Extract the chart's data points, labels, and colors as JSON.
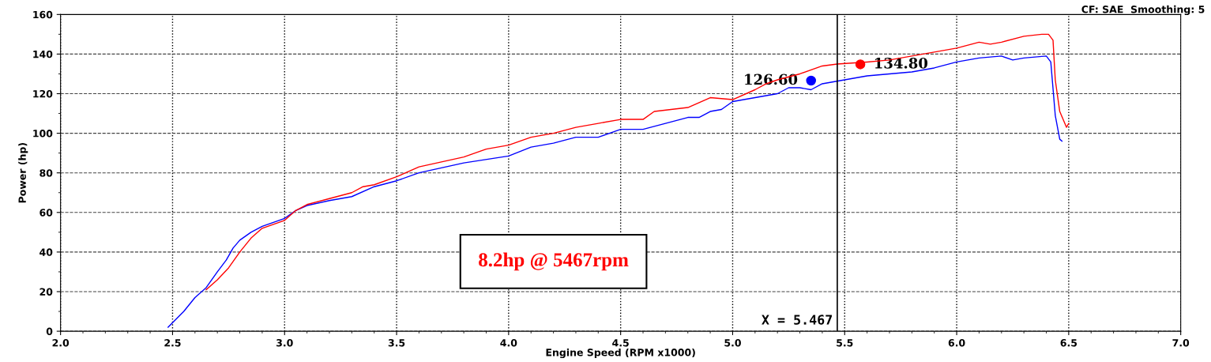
{
  "chart_data": {
    "type": "line",
    "xlabel": "Engine Speed (RPM x1000)",
    "ylabel": "Power (hp)",
    "xlim": [
      2.0,
      7.0
    ],
    "ylim": [
      0,
      160
    ],
    "xticks": [
      {
        "value": 2.0,
        "label": "2.0"
      },
      {
        "value": 2.5,
        "label": "2.5"
      },
      {
        "value": 3.0,
        "label": "3.0"
      },
      {
        "value": 3.5,
        "label": "3.5"
      },
      {
        "value": 4.0,
        "label": "4.0"
      },
      {
        "value": 4.5,
        "label": "4.5"
      },
      {
        "value": 5.0,
        "label": "5.0"
      },
      {
        "value": 5.5,
        "label": "5.5"
      },
      {
        "value": 6.0,
        "label": "6.0"
      },
      {
        "value": 6.5,
        "label": "6.5"
      },
      {
        "value": 7.0,
        "label": "7.0"
      }
    ],
    "yticks": [
      0,
      20,
      40,
      60,
      80,
      100,
      120,
      140,
      160
    ],
    "grid": true,
    "line_style": "solid",
    "series": [
      {
        "color": "#0000ff",
        "x": [
          2.48,
          2.55,
          2.6,
          2.65,
          2.7,
          2.74,
          2.77,
          2.8,
          2.85,
          2.9,
          3.0,
          3.05,
          3.1,
          3.2,
          3.3,
          3.4,
          3.5,
          3.6,
          3.8,
          4.0,
          4.1,
          4.2,
          4.3,
          4.4,
          4.5,
          4.6,
          4.7,
          4.8,
          4.85,
          4.9,
          4.95,
          5.0,
          5.1,
          5.2,
          5.25,
          5.3,
          5.35,
          5.4,
          5.5,
          5.6,
          5.7,
          5.8,
          5.9,
          6.0,
          6.1,
          6.2,
          6.25,
          6.3,
          6.4,
          6.42,
          6.44,
          6.46,
          6.47
        ],
        "values": [
          2,
          10,
          17,
          22,
          30,
          36,
          42,
          46,
          50,
          53,
          57,
          61,
          63.5,
          66,
          68,
          73,
          76,
          80,
          85,
          88.5,
          93,
          95,
          98,
          98,
          102,
          102,
          105,
          108,
          108,
          111,
          112,
          116,
          118,
          120,
          123,
          123,
          122,
          125,
          127,
          129,
          130,
          131,
          133,
          136,
          138,
          139,
          137,
          138,
          139,
          136,
          109,
          97,
          96
        ]
      },
      {
        "color": "#ff0000",
        "x": [
          2.65,
          2.7,
          2.75,
          2.8,
          2.85,
          2.9,
          3.0,
          3.05,
          3.1,
          3.2,
          3.3,
          3.35,
          3.4,
          3.5,
          3.6,
          3.8,
          3.9,
          4.0,
          4.1,
          4.2,
          4.3,
          4.4,
          4.5,
          4.6,
          4.65,
          4.8,
          4.9,
          5.0,
          5.1,
          5.15,
          5.2,
          5.3,
          5.4,
          5.467,
          5.6,
          5.7,
          5.8,
          5.9,
          6.0,
          6.1,
          6.15,
          6.2,
          6.3,
          6.38,
          6.41,
          6.43,
          6.44,
          6.46,
          6.49,
          6.5
        ],
        "values": [
          21,
          26,
          32,
          40,
          47,
          52,
          56,
          61,
          64,
          67,
          70,
          73,
          74,
          78,
          83,
          88,
          92,
          94,
          98,
          100,
          103,
          105,
          107,
          107,
          111,
          113,
          118,
          117,
          122,
          125,
          127,
          130,
          134,
          135,
          136,
          137,
          139,
          141,
          143,
          146,
          145,
          146,
          149,
          150,
          150,
          147,
          127,
          111,
          103,
          105
        ]
      }
    ],
    "ref_lines": [
      {
        "axis": "x",
        "value": 5.467,
        "label": "X = 5.467",
        "color": "#000000"
      }
    ],
    "annotations": [
      {
        "text": "126.60",
        "x": 5.35,
        "y": 126.6
      },
      {
        "text": "134.80",
        "x": 5.57,
        "y": 134.8
      },
      "CF: SAE  Smoothing: 5",
      "8.2hp @ 5467rpm"
    ]
  }
}
